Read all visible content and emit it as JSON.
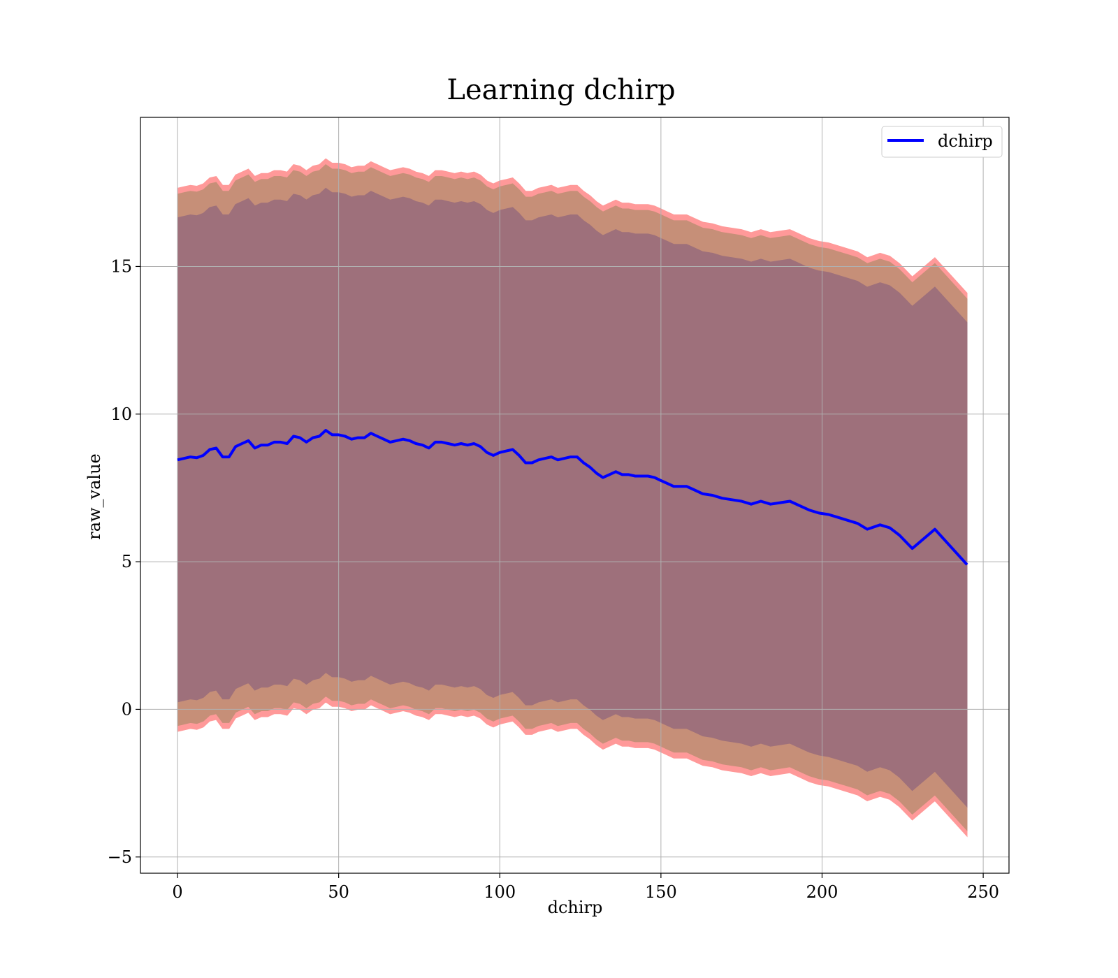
{
  "chart_data": {
    "type": "line",
    "title": "Learning dchirp",
    "xlabel": "dchirp",
    "ylabel": "raw_value",
    "xlim": [
      -11.5,
      258
    ],
    "ylim": [
      -5.55,
      20.05
    ],
    "xticks": [
      0,
      50,
      100,
      150,
      200,
      250
    ],
    "xtick_labels": [
      "0",
      "50",
      "100",
      "150",
      "200",
      "250"
    ],
    "yticks": [
      -5,
      0,
      5,
      10,
      15
    ],
    "ytick_labels": [
      "−5",
      "0",
      "5",
      "10",
      "15"
    ],
    "grid": true,
    "legend": {
      "position": "top-right",
      "entries": [
        "dchirp"
      ]
    },
    "colors": {
      "line": "#0000ff",
      "outer_band": "#ff9999",
      "middle_band": "#c68f78",
      "inner_band": "#9e707b",
      "grid": "#b0b0b0"
    },
    "series": [
      {
        "name": "dchirp",
        "style": "line",
        "x": [
          0,
          2,
          4,
          6,
          8,
          10,
          12,
          14,
          16,
          18,
          20,
          22,
          24,
          26,
          28,
          30,
          32,
          34,
          36,
          38,
          40,
          42,
          44,
          46,
          48,
          50,
          52,
          54,
          56,
          58,
          60,
          62,
          64,
          66,
          68,
          70,
          72,
          74,
          76,
          78,
          80,
          82,
          84,
          86,
          88,
          90,
          92,
          94,
          96,
          98,
          100,
          102,
          104,
          106,
          108,
          110,
          112,
          114,
          116,
          118,
          120,
          122,
          124,
          126,
          128,
          130,
          132,
          134,
          136,
          138,
          140,
          142,
          144,
          146,
          148,
          150,
          152,
          154,
          156,
          158,
          160,
          163,
          166,
          169,
          172,
          175,
          178,
          181,
          184,
          187,
          190,
          193,
          196,
          199,
          202,
          205,
          208,
          211,
          214,
          218,
          221,
          224,
          228,
          235,
          245
        ],
        "y": [
          8.45,
          8.5,
          8.55,
          8.52,
          8.6,
          8.8,
          8.85,
          8.55,
          8.55,
          8.9,
          9.0,
          9.1,
          8.85,
          8.95,
          8.95,
          9.05,
          9.05,
          9.0,
          9.25,
          9.2,
          9.05,
          9.2,
          9.25,
          9.45,
          9.3,
          9.3,
          9.25,
          9.15,
          9.2,
          9.2,
          9.35,
          9.25,
          9.15,
          9.05,
          9.1,
          9.15,
          9.1,
          9.0,
          8.95,
          8.85,
          9.05,
          9.05,
          9.0,
          8.95,
          9.0,
          8.95,
          9.0,
          8.9,
          8.7,
          8.6,
          8.7,
          8.75,
          8.8,
          8.6,
          8.35,
          8.35,
          8.45,
          8.5,
          8.55,
          8.45,
          8.5,
          8.55,
          8.55,
          8.35,
          8.2,
          8.0,
          7.85,
          7.95,
          8.05,
          7.95,
          7.95,
          7.9,
          7.9,
          7.9,
          7.85,
          7.75,
          7.65,
          7.55,
          7.55,
          7.55,
          7.45,
          7.3,
          7.25,
          7.15,
          7.1,
          7.05,
          6.95,
          7.05,
          6.95,
          7.0,
          7.05,
          6.9,
          6.75,
          6.65,
          6.6,
          6.5,
          6.4,
          6.3,
          6.1,
          6.25,
          6.15,
          5.9,
          5.45,
          6.1,
          4.9
        ]
      },
      {
        "name": "",
        "style": "band",
        "band_offset": 9.2,
        "color_key": "outer_band"
      },
      {
        "name": "",
        "style": "band",
        "band_offset": 9.0,
        "color_key": "middle_band"
      },
      {
        "name": "",
        "style": "band",
        "band_offset": 8.2,
        "color_key": "inner_band"
      }
    ]
  }
}
